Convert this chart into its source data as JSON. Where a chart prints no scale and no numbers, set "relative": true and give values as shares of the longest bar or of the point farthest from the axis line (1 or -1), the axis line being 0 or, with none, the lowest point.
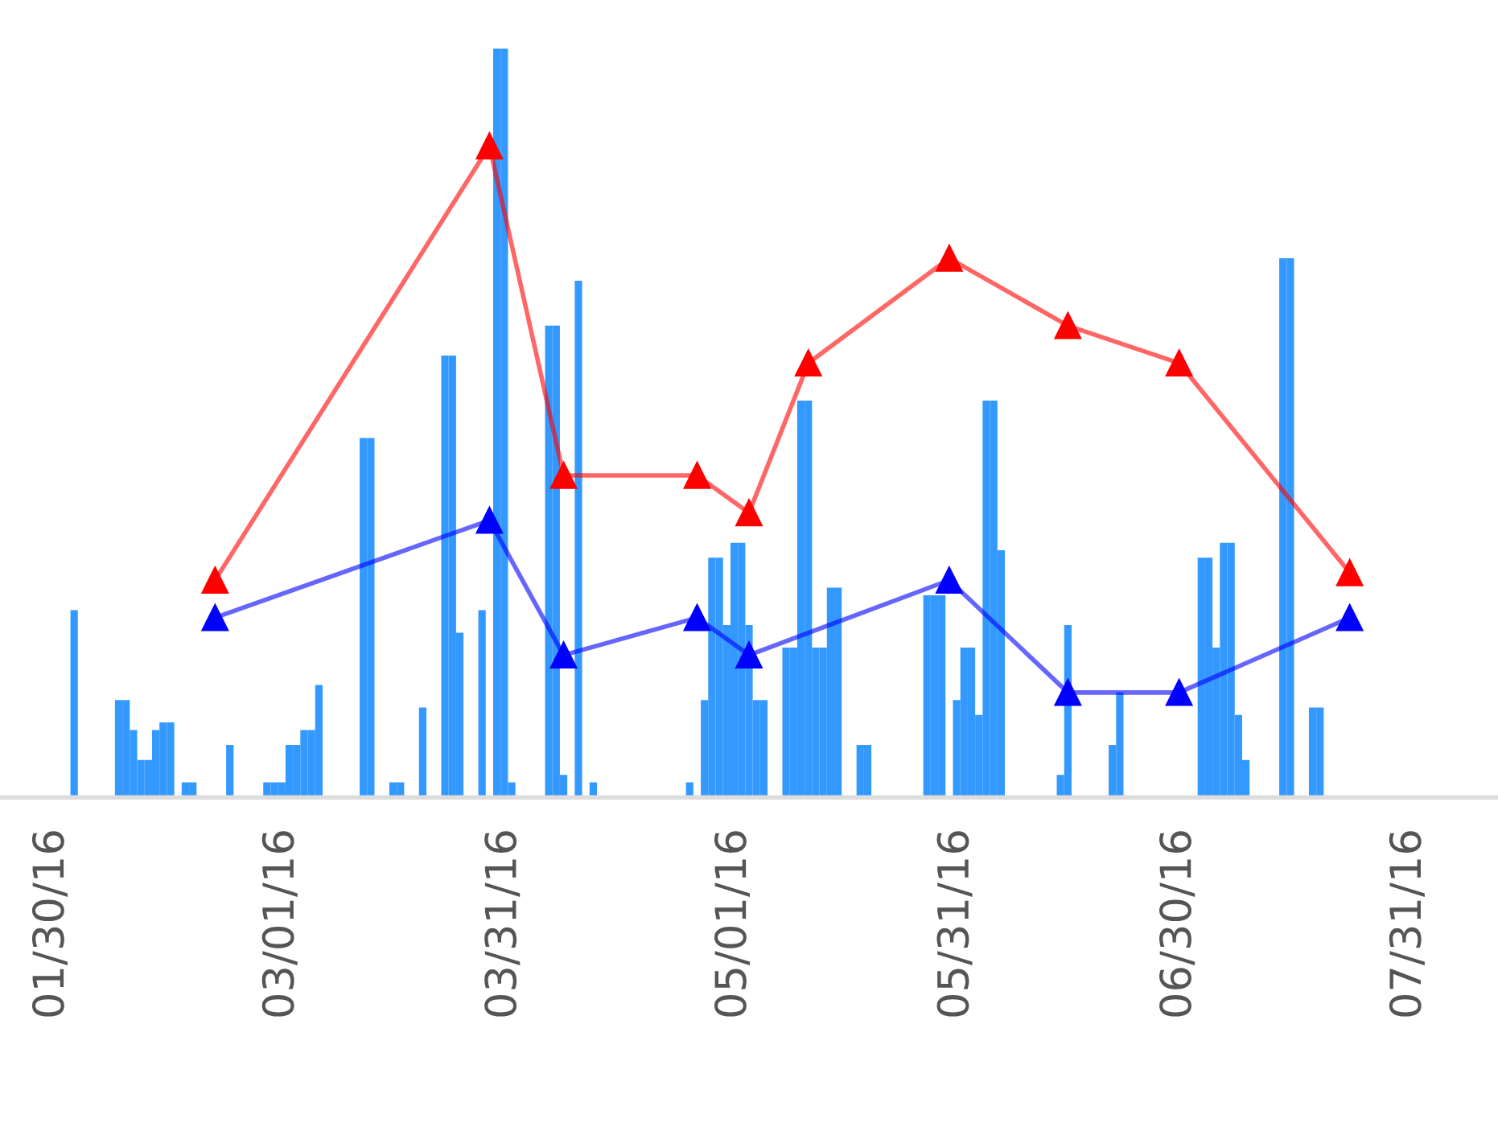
{
  "chart_data": {
    "type": "bar",
    "relative": true,
    "marker": "triangle",
    "line_style": "solid",
    "xlim": [
      "2016-01-23",
      "2016-08-12"
    ],
    "xticks": [
      {
        "value": "2016-01-30",
        "label": "01/30/16"
      },
      {
        "value": "2016-03-01",
        "label": "03/01/16"
      },
      {
        "value": "2016-03-31",
        "label": "03/31/16"
      },
      {
        "value": "2016-05-01",
        "label": "05/01/16"
      },
      {
        "value": "2016-05-31",
        "label": "05/31/16"
      },
      {
        "value": "2016-06-30",
        "label": "06/30/16"
      },
      {
        "value": "2016-07-31",
        "label": "07/31/16"
      }
    ],
    "series": [
      {
        "color": "#3399ff",
        "x": [
          "2016-02-02",
          "2016-02-08",
          "2016-02-09",
          "2016-02-10",
          "2016-02-11",
          "2016-02-12",
          "2016-02-13",
          "2016-02-14",
          "2016-02-15",
          "2016-02-17",
          "2016-02-18",
          "2016-02-23",
          "2016-02-28",
          "2016-02-29",
          "2016-03-01",
          "2016-03-02",
          "2016-03-03",
          "2016-03-04",
          "2016-03-05",
          "2016-03-06",
          "2016-03-12",
          "2016-03-13",
          "2016-03-16",
          "2016-03-17",
          "2016-03-20",
          "2016-03-23",
          "2016-03-24",
          "2016-03-25",
          "2016-03-28",
          "2016-03-30",
          "2016-03-31",
          "2016-04-01",
          "2016-04-06",
          "2016-04-07",
          "2016-04-08",
          "2016-04-10",
          "2016-04-12",
          "2016-04-25",
          "2016-04-27",
          "2016-04-28",
          "2016-04-29",
          "2016-04-30",
          "2016-05-01",
          "2016-05-02",
          "2016-05-03",
          "2016-05-04",
          "2016-05-05",
          "2016-05-08",
          "2016-05-09",
          "2016-05-10",
          "2016-05-11",
          "2016-05-12",
          "2016-05-13",
          "2016-05-14",
          "2016-05-15",
          "2016-05-18",
          "2016-05-19",
          "2016-05-27",
          "2016-05-28",
          "2016-05-29",
          "2016-05-31",
          "2016-06-01",
          "2016-06-02",
          "2016-06-03",
          "2016-06-04",
          "2016-06-05",
          "2016-06-06",
          "2016-06-14",
          "2016-06-15",
          "2016-06-21",
          "2016-06-22",
          "2016-07-03",
          "2016-07-04",
          "2016-07-05",
          "2016-07-06",
          "2016-07-07",
          "2016-07-08",
          "2016-07-09",
          "2016-07-14",
          "2016-07-15",
          "2016-07-18",
          "2016-07-19"
        ],
        "values": [
          0.25,
          0.13,
          0.13,
          0.09,
          0.05,
          0.05,
          0.09,
          0.1,
          0.1,
          0.02,
          0.02,
          0.07,
          0.02,
          0.02,
          0.02,
          0.07,
          0.07,
          0.09,
          0.09,
          0.15,
          0.48,
          0.48,
          0.02,
          0.02,
          0.12,
          0.59,
          0.59,
          0.22,
          0.25,
          1.0,
          1.0,
          0.02,
          0.63,
          0.63,
          0.03,
          0.69,
          0.02,
          0.02,
          0.13,
          0.32,
          0.32,
          0.23,
          0.34,
          0.34,
          0.23,
          0.13,
          0.13,
          0.2,
          0.2,
          0.53,
          0.53,
          0.2,
          0.2,
          0.28,
          0.28,
          0.07,
          0.07,
          0.27,
          0.27,
          0.27,
          0.13,
          0.2,
          0.2,
          0.11,
          0.53,
          0.53,
          0.33,
          0.03,
          0.23,
          0.07,
          0.14,
          0.32,
          0.32,
          0.2,
          0.34,
          0.34,
          0.11,
          0.05,
          0.72,
          0.72,
          0.12,
          0.12
        ]
      },
      {
        "type": "line",
        "color": "#ff0000",
        "x": [
          "2016-02-21",
          "2016-03-29",
          "2016-04-08",
          "2016-04-26",
          "2016-05-03",
          "2016-05-11",
          "2016-05-30",
          "2016-06-15",
          "2016-06-30",
          "2016-07-23"
        ],
        "values": [
          0.29,
          0.87,
          0.43,
          0.43,
          0.38,
          0.58,
          0.72,
          0.63,
          0.58,
          0.3
        ]
      },
      {
        "type": "line",
        "color": "#0000ff",
        "x": [
          "2016-02-21",
          "2016-03-29",
          "2016-04-08",
          "2016-04-26",
          "2016-05-03",
          "2016-05-30",
          "2016-06-15",
          "2016-06-30",
          "2016-07-23"
        ],
        "values": [
          0.24,
          0.37,
          0.19,
          0.24,
          0.19,
          0.29,
          0.14,
          0.14,
          0.24
        ]
      }
    ]
  }
}
